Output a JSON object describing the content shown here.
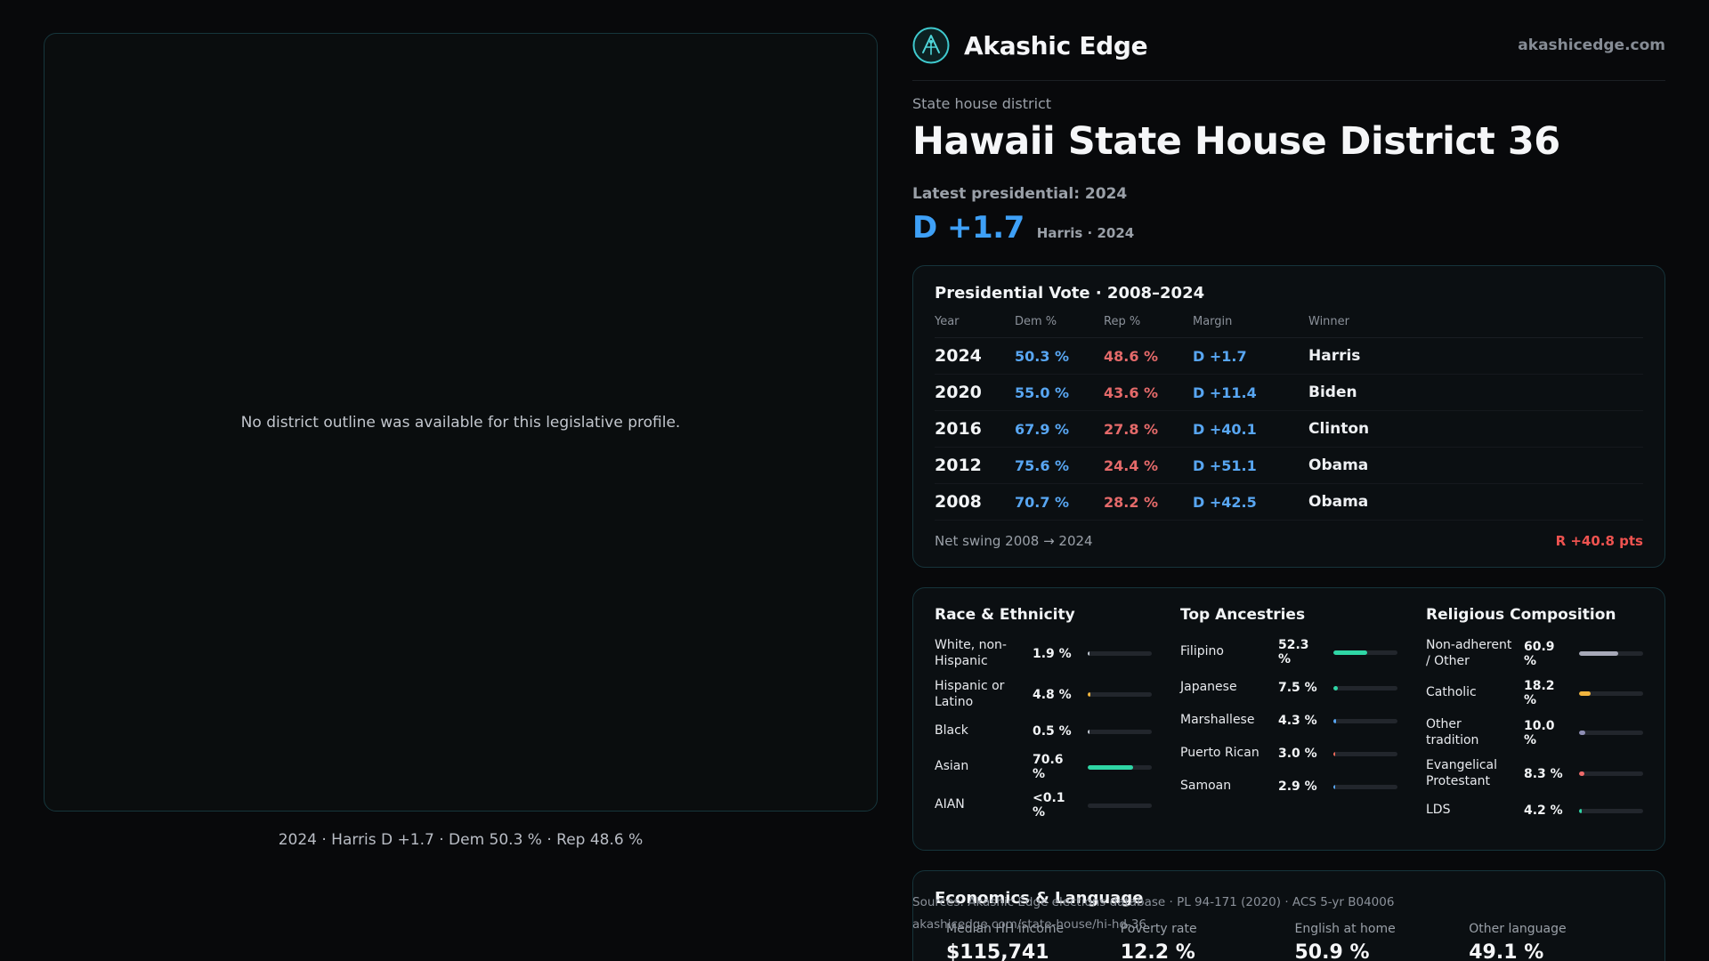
{
  "brand": {
    "name": "Akashic Edge",
    "domain": "akashicedge.com"
  },
  "page": {
    "kicker": "State house district",
    "title": "Hawaii State House District 36",
    "latest_label": "Latest presidential: 2024",
    "margin_big": "D +1.7",
    "margin_sub": "Harris · 2024"
  },
  "map_panel": {
    "empty_message": "No district outline was available for this legislative profile.",
    "caption": "2024 · Harris D +1.7 · Dem 50.3 % · Rep 48.6 %"
  },
  "presidential_table": {
    "title": "Presidential Vote · 2008–2024",
    "columns": [
      "Year",
      "Dem %",
      "Rep %",
      "Margin",
      "Winner"
    ],
    "rows": [
      {
        "year": "2024",
        "dem": "50.3 %",
        "rep": "48.6 %",
        "margin": "D +1.7",
        "winner": "Harris"
      },
      {
        "year": "2020",
        "dem": "55.0 %",
        "rep": "43.6 %",
        "margin": "D +11.4",
        "winner": "Biden"
      },
      {
        "year": "2016",
        "dem": "67.9 %",
        "rep": "27.8 %",
        "margin": "D +40.1",
        "winner": "Clinton"
      },
      {
        "year": "2012",
        "dem": "75.6 %",
        "rep": "24.4 %",
        "margin": "D +51.1",
        "winner": "Obama"
      },
      {
        "year": "2008",
        "dem": "70.7 %",
        "rep": "28.2 %",
        "margin": "D +42.5",
        "winner": "Obama"
      }
    ],
    "net_swing_label": "Net swing 2008 → 2024",
    "net_swing_value": "R +40.8 pts"
  },
  "demographics": {
    "race": {
      "title": "Race & Ethnicity",
      "rows": [
        {
          "label": "White, non-Hispanic",
          "value": "1.9 %",
          "pct": 1.9,
          "color": "#c3cad4"
        },
        {
          "label": "Hispanic or Latino",
          "value": "4.8 %",
          "pct": 4.8,
          "color": "#f0b43e"
        },
        {
          "label": "Black",
          "value": "0.5 %",
          "pct": 0.5,
          "color": "#c3cad4"
        },
        {
          "label": "Asian",
          "value": "70.6 %",
          "pct": 70.6,
          "color": "#2fd6a5"
        },
        {
          "label": "AIAN",
          "value": "<0.1 %",
          "pct": 0,
          "color": "#c3cad4"
        }
      ]
    },
    "ancestries": {
      "title": "Top Ancestries",
      "rows": [
        {
          "label": "Filipino",
          "value": "52.3 %",
          "pct": 52.3,
          "color": "#2fd6a5"
        },
        {
          "label": "Japanese",
          "value": "7.5 %",
          "pct": 7.5,
          "color": "#2fd6a5"
        },
        {
          "label": "Marshallese",
          "value": "4.3 %",
          "pct": 4.3,
          "color": "#58a6f2"
        },
        {
          "label": "Puerto Rican",
          "value": "3.0 %",
          "pct": 3.0,
          "color": "#ef6a5a"
        },
        {
          "label": "Samoan",
          "value": "2.9 %",
          "pct": 2.9,
          "color": "#58a6f2"
        }
      ]
    },
    "religion": {
      "title": "Religious Composition",
      "rows": [
        {
          "label": "Non-adherent / Other",
          "value": "60.9 %",
          "pct": 60.9,
          "color": "#a7a9b8"
        },
        {
          "label": "Catholic",
          "value": "18.2 %",
          "pct": 18.2,
          "color": "#f0b43e"
        },
        {
          "label": "Other tradition",
          "value": "10.0 %",
          "pct": 10.0,
          "color": "#8f8fb5"
        },
        {
          "label": "Evangelical Protestant",
          "value": "8.3 %",
          "pct": 8.3,
          "color": "#ef6a6a"
        },
        {
          "label": "LDS",
          "value": "4.2 %",
          "pct": 4.2,
          "color": "#2fd6a5"
        }
      ]
    }
  },
  "economics": {
    "title": "Economics & Language",
    "stats": [
      {
        "label": "Median HH income",
        "value": "$115,741"
      },
      {
        "label": "Poverty rate",
        "value": "12.2 %"
      },
      {
        "label": "English at home",
        "value": "50.9 %"
      },
      {
        "label": "Other language",
        "value": "49.1 %"
      }
    ]
  },
  "sources": {
    "line1": "Sources: Akashic Edge elections database · PL 94-171 (2020) · ACS 5-yr B04006",
    "line2": "akashicedge.com/state-house/hi-hd-36"
  },
  "colors": {
    "dem_blue": "#58a6f2",
    "rep_red": "#e56a6a",
    "net_swing_red": "#ef5350",
    "accent_teal": "#2fd6a5",
    "card_border": "#16343b",
    "background": "#08090b"
  }
}
